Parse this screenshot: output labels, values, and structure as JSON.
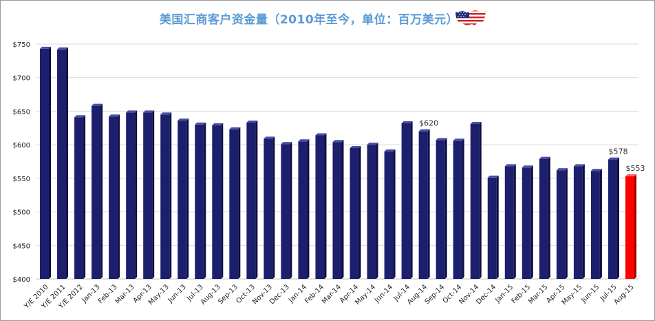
{
  "chart_data": {
    "type": "bar",
    "title": "美国汇商客户资金量（2010年至今，单位：百万美元）",
    "categories": [
      "Y/E 2010",
      "Y/E 2011",
      "Y/E 2012",
      "Jan-13",
      "Feb-13",
      "Mar-13",
      "Apr-13",
      "May-13",
      "Jun-13",
      "Jul-13",
      "Aug-13",
      "Sep-13",
      "Oct-13",
      "Nov-13",
      "Dec-13",
      "Jan-14",
      "Feb-14",
      "Mar-14",
      "Apr-14",
      "May-14",
      "Jun-14",
      "Jul-14",
      "Aug-14",
      "Sep-14",
      "Oct-14",
      "Nov-14",
      "Dec-14",
      "Jan-15",
      "Feb-15",
      "Mar-15",
      "Apr-15",
      "May-15",
      "Jun-15",
      "Jul-15",
      "Aug-15"
    ],
    "values": [
      743,
      742,
      641,
      658,
      642,
      648,
      648,
      645,
      636,
      630,
      629,
      623,
      633,
      609,
      601,
      605,
      614,
      604,
      595,
      600,
      590,
      632,
      620,
      607,
      606,
      631,
      551,
      568,
      566,
      579,
      562,
      568,
      561,
      578,
      553
    ],
    "highlight_index": 34,
    "bar_color": "#1c1f6e",
    "highlight_color": "#ff0000",
    "ylim": [
      400,
      750
    ],
    "yticks": [
      400,
      450,
      500,
      550,
      600,
      650,
      700,
      750
    ],
    "ytick_labels": [
      "$400",
      "$450",
      "$500",
      "$550",
      "$600",
      "$650",
      "$700",
      "$750"
    ],
    "data_labels": [
      {
        "index": 22,
        "text": "$620"
      },
      {
        "index": 33,
        "text": "$578"
      },
      {
        "index": 34,
        "text": "$553"
      }
    ],
    "grid": true,
    "xlabel": "",
    "ylabel": ""
  },
  "flag_icon": "us-flag-icon"
}
